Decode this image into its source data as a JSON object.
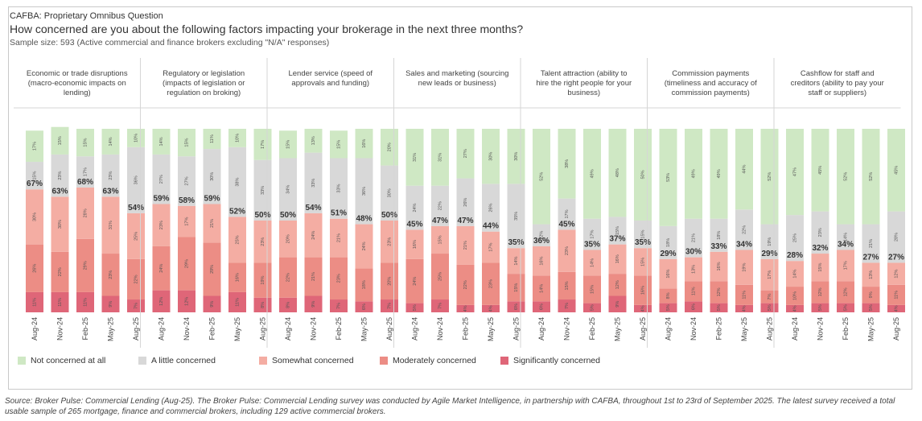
{
  "header": {
    "org_label": "CAFBA: Proprietary Omnibus Question",
    "question": "How concerned are you about the following factors impacting your brokerage in the next three months?",
    "sample": "Sample size: 593 (Active commercial and finance brokers  excluding \"N/A\" responses)"
  },
  "footer": {
    "source": "Source: Broker Pulse: Commercial Lending (Aug-25). The Broker Pulse: Commercial Lending survey was conducted by Agile Market Intelligence, in partnership with CAFBA, throughout 1st to 23rd of September 2025. The latest survey received a total usable sample of 265 mortgage, finance and commercial brokers, including 129 active commercial brokers."
  },
  "chart_data": {
    "type": "bar",
    "stacked": true,
    "y_range": [
      0,
      100
    ],
    "periods": [
      "Aug-24",
      "Nov-24",
      "Feb-25",
      "May-25",
      "Aug-25"
    ],
    "series_order": [
      "Significantly concerned",
      "Moderately concerned",
      "Somewhat concerned",
      "A little concerned",
      "Not concerned at all"
    ],
    "colors": {
      "Not concerned at all": "#cfe8c4",
      "A little concerned": "#d8d8d8",
      "Somewhat concerned": "#f4ada3",
      "Moderately concerned": "#ec8d85",
      "Significantly concerned": "#df6678"
    },
    "legend": [
      "Not concerned at all",
      "A little concerned",
      "Somewhat concerned",
      "Moderately concerned",
      "Significantly concerned"
    ],
    "legend_position": "bottom",
    "panels": [
      {
        "title": "Economic or trade disruptions (macro-economic impacts on lending)",
        "bars": [
          {
            "period": "Aug-24",
            "segments": [
              11,
              26,
              30,
              15,
              17
            ],
            "total_label": "67%"
          },
          {
            "period": "Nov-24",
            "segments": [
              11,
              22,
              30,
              23,
              15
            ],
            "total_label": "63%"
          },
          {
            "period": "Feb-25",
            "segments": [
              11,
              29,
              28,
              17,
              15
            ],
            "total_label": "68%"
          },
          {
            "period": "May-25",
            "segments": [
              9,
              23,
              31,
              23,
              14
            ],
            "total_label": "63%"
          },
          {
            "period": "Aug-25",
            "segments": [
              7,
              22,
              25,
              36,
              10
            ],
            "total_label": "54%"
          }
        ]
      },
      {
        "title": "Regulatory or legislation (impacts of legislation or regulation on broking)",
        "bars": [
          {
            "period": "Aug-24",
            "segments": [
              12,
              24,
              23,
              27,
              14
            ],
            "total_label": "59%"
          },
          {
            "period": "Nov-24",
            "segments": [
              12,
              29,
              17,
              27,
              15
            ],
            "total_label": "58%"
          },
          {
            "period": "Feb-25",
            "segments": [
              9,
              29,
              21,
              30,
              11
            ],
            "total_label": "59%"
          },
          {
            "period": "May-25",
            "segments": [
              11,
              16,
              25,
              38,
              10
            ],
            "total_label": "52%"
          },
          {
            "period": "Aug-25",
            "segments": [
              8,
              19,
              23,
              33,
              17
            ],
            "total_label": "50%"
          }
        ]
      },
      {
        "title": "Lender service (speed of approvals and funding)",
        "bars": [
          {
            "period": "Aug-24",
            "segments": [
              8,
              22,
              20,
              34,
              15
            ],
            "total_label": "50%"
          },
          {
            "period": "Nov-24",
            "segments": [
              9,
              21,
              24,
              33,
              13
            ],
            "total_label": "54%"
          },
          {
            "period": "Feb-25",
            "segments": [
              7,
              23,
              21,
              33,
              15
            ],
            "total_label": "51%"
          },
          {
            "period": "May-25",
            "segments": [
              6,
              18,
              24,
              36,
              16
            ],
            "total_label": "48%"
          },
          {
            "period": "Aug-25",
            "segments": [
              7,
              20,
              23,
              30,
              20
            ],
            "total_label": "50%"
          }
        ]
      },
      {
        "title": "Sales and marketing (sourcing new leads or business)",
        "bars": [
          {
            "period": "Aug-24",
            "segments": [
              5,
              24,
              16,
              24,
              31
            ],
            "total_label": "45%"
          },
          {
            "period": "Nov-24",
            "segments": [
              7,
              25,
              15,
              22,
              31
            ],
            "total_label": "47%"
          },
          {
            "period": "Feb-25",
            "segments": [
              4,
              22,
              21,
              26,
              27
            ],
            "total_label": "47%"
          },
          {
            "period": "May-25",
            "segments": [
              4,
              23,
              17,
              26,
              30
            ],
            "total_label": "44%"
          },
          {
            "period": "Aug-25",
            "segments": [
              6,
              15,
              14,
              35,
              30
            ],
            "total_label": "35%"
          }
        ]
      },
      {
        "title": "Talent attraction (ability to hire the right people for your business)",
        "bars": [
          {
            "period": "Aug-24",
            "segments": [
              6,
              14,
              16,
              12,
              52
            ],
            "total_label": "36%"
          },
          {
            "period": "Nov-24",
            "segments": [
              7,
              15,
              23,
              17,
              38
            ],
            "total_label": "45%"
          },
          {
            "period": "Feb-25",
            "segments": [
              5,
              15,
              14,
              17,
              49
            ],
            "total_label": "35%"
          },
          {
            "period": "May-25",
            "segments": [
              9,
              12,
              16,
              15,
              48
            ],
            "total_label": "37%"
          },
          {
            "period": "Aug-25",
            "segments": [
              4,
              16,
              15,
              15,
              50
            ],
            "total_label": "35%"
          }
        ]
      },
      {
        "title": "Commission payments (timeliness and accuracy of commission payments)",
        "bars": [
          {
            "period": "Aug-24",
            "segments": [
              5,
              8,
              16,
              18,
              53
            ],
            "total_label": "29%"
          },
          {
            "period": "Nov-24",
            "segments": [
              6,
              11,
              13,
              21,
              49
            ],
            "total_label": "30%"
          },
          {
            "period": "Feb-25",
            "segments": [
              5,
              12,
              16,
              18,
              49
            ],
            "total_label": "33%"
          },
          {
            "period": "May-25",
            "segments": [
              4,
              11,
              19,
              22,
              44
            ],
            "total_label": "34%"
          },
          {
            "period": "Aug-25",
            "segments": [
              5,
              7,
              17,
              19,
              52
            ],
            "total_label": "29%"
          }
        ]
      },
      {
        "title": "Cashflow for staff and creditors (ability to pay your staff or suppliers)",
        "bars": [
          {
            "period": "Aug-24",
            "segments": [
              4,
              10,
              14,
              25,
              47
            ],
            "total_label": "28%"
          },
          {
            "period": "Nov-24",
            "segments": [
              5,
              12,
              15,
              23,
              45
            ],
            "total_label": "32%"
          },
          {
            "period": "Feb-25",
            "segments": [
              5,
              12,
              17,
              14,
              52
            ],
            "total_label": "34%"
          },
          {
            "period": "May-25",
            "segments": [
              5,
              9,
              13,
              21,
              52
            ],
            "total_label": "27%"
          },
          {
            "period": "Aug-25",
            "segments": [
              4,
              11,
              12,
              28,
              45
            ],
            "total_label": "27%"
          }
        ]
      }
    ]
  }
}
